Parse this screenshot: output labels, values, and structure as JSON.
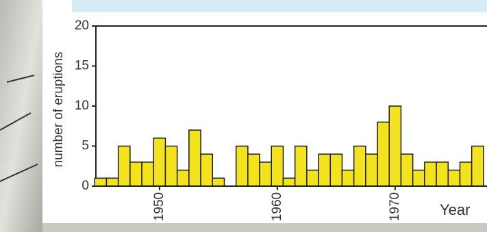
{
  "chart_data": {
    "type": "bar",
    "ylabel": "number of eruptions",
    "xlabel": "Year",
    "x": [
      1945,
      1946,
      1947,
      1948,
      1949,
      1950,
      1951,
      1952,
      1953,
      1954,
      1955,
      1956,
      1957,
      1958,
      1959,
      1960,
      1961,
      1962,
      1963,
      1964,
      1965,
      1966,
      1967,
      1968,
      1969,
      1970,
      1971,
      1972,
      1973,
      1974,
      1975,
      1976,
      1977
    ],
    "values": [
      1,
      1,
      5,
      3,
      3,
      6,
      5,
      2,
      7,
      4,
      1,
      0,
      5,
      4,
      3,
      5,
      1,
      5,
      2,
      4,
      4,
      2,
      5,
      4,
      8,
      10,
      4,
      2,
      3,
      3,
      2,
      3,
      5
    ],
    "color": "#f2e31c",
    "xlim": [
      1944.6,
      1977.8
    ],
    "xticks": [
      1950,
      1960,
      1970
    ],
    "ylim": [
      0,
      20
    ],
    "yticks": [
      0,
      5,
      10,
      15,
      20
    ]
  }
}
